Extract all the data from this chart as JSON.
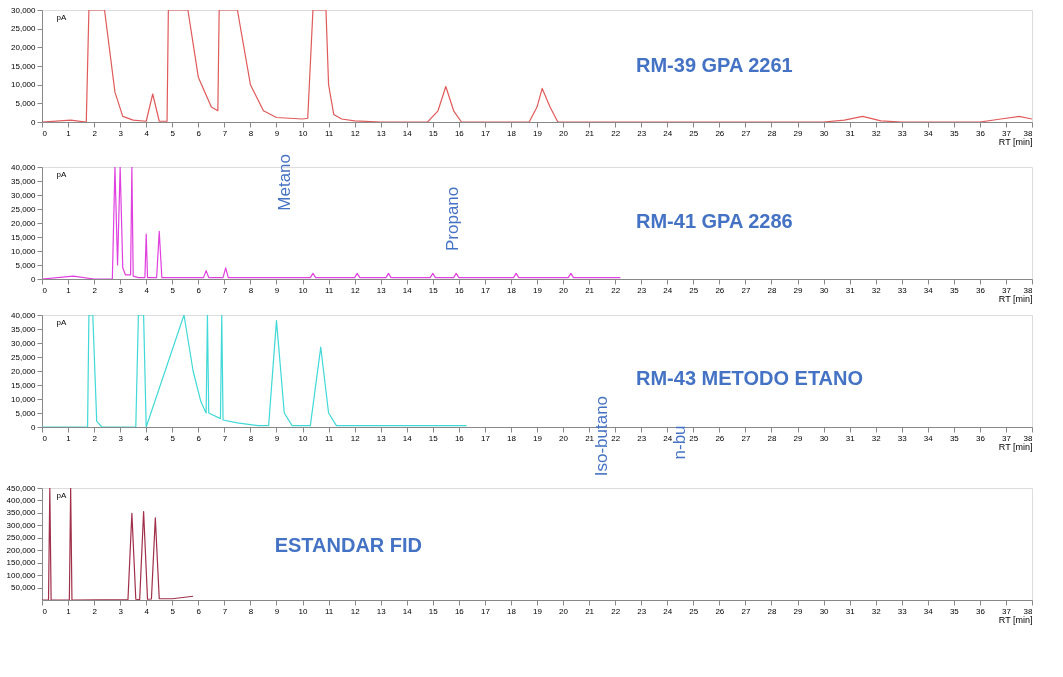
{
  "chart_data": [
    {
      "type": "line",
      "title": "RM-39 GPA 2261",
      "xlabel": "RT [min]",
      "ylabel": "pA",
      "xlim": [
        0,
        38
      ],
      "xticks": [
        0,
        1,
        2,
        3,
        4,
        5,
        6,
        7,
        8,
        9,
        10,
        11,
        12,
        13,
        14,
        15,
        16,
        17,
        18,
        19,
        20,
        21,
        22,
        23,
        24,
        25,
        26,
        27,
        28,
        29,
        30,
        31,
        32,
        33,
        34,
        35,
        36,
        37,
        38
      ],
      "ylim": [
        0,
        30000
      ],
      "yticks": [
        0,
        {
          "value": 5000,
          "label": "5,000"
        },
        {
          "value": 10000,
          "label": "10,000"
        },
        {
          "value": 15000,
          "label": "15,000"
        },
        {
          "value": 20000,
          "label": "20,000"
        },
        {
          "value": 25000,
          "label": "25,000"
        },
        {
          "value": 30000,
          "label": "30,000"
        }
      ],
      "x": [
        0,
        1.1,
        1.7,
        1.8,
        2.4,
        2.8,
        3.1,
        3.5,
        4.0,
        4.25,
        4.5,
        4.8,
        4.85,
        5.6,
        6.0,
        6.5,
        6.75,
        6.8,
        7.5,
        8.0,
        8.5,
        9.0,
        10.0,
        10.2,
        10.4,
        10.9,
        11.0,
        11.2,
        11.5,
        12.0,
        13.0,
        14.8,
        15.2,
        15.5,
        15.8,
        16.1,
        18.7,
        19.0,
        19.2,
        19.5,
        19.8,
        30.0,
        30.8,
        31.5,
        32.2,
        33.0,
        36.0,
        36.8,
        37.5,
        38.0
      ],
      "series": [
        {
          "color": "#e05a5a",
          "values": [
            0,
            500,
            0,
            30000,
            30000,
            8000,
            1500,
            500,
            200,
            7500,
            200,
            200,
            30000,
            30000,
            12000,
            4000,
            3000,
            30000,
            30000,
            10000,
            3000,
            1200,
            800,
            1000,
            30000,
            30000,
            10000,
            2000,
            800,
            300,
            0,
            0,
            3000,
            9500,
            3000,
            0,
            0,
            4000,
            9000,
            4000,
            0,
            0,
            500,
            1500,
            300,
            0,
            0,
            800,
            1500,
            800
          ]
        }
      ]
    },
    {
      "type": "line",
      "title": "RM-41 GPA 2286",
      "xlabel": "RT [min]",
      "ylabel": "pA",
      "xlim": [
        0,
        38
      ],
      "xticks": [
        0,
        1,
        2,
        3,
        4,
        5,
        6,
        7,
        8,
        9,
        10,
        11,
        12,
        13,
        14,
        15,
        16,
        17,
        18,
        19,
        20,
        21,
        22,
        23,
        24,
        25,
        26,
        27,
        28,
        29,
        30,
        31,
        32,
        33,
        34,
        35,
        36,
        37,
        38
      ],
      "ylim": [
        0,
        40000
      ],
      "yticks": [
        0,
        {
          "value": 5000,
          "label": "5,000"
        },
        {
          "value": 10000,
          "label": "10,000"
        },
        {
          "value": 15000,
          "label": "15,000"
        },
        {
          "value": 20000,
          "label": "20,000"
        },
        {
          "value": 25000,
          "label": "25,000"
        },
        {
          "value": 30000,
          "label": "30,000"
        },
        {
          "value": 35000,
          "label": "35,000"
        },
        {
          "value": 40000,
          "label": "40,000"
        }
      ],
      "x": [
        0,
        1.2,
        2.0,
        2.7,
        2.8,
        2.9,
        3.0,
        3.1,
        3.2,
        3.4,
        3.45,
        3.5,
        3.7,
        3.95,
        4.0,
        4.05,
        4.4,
        4.5,
        4.6,
        6.2,
        6.3,
        6.4,
        6.95,
        7.05,
        7.15,
        10.3,
        10.4,
        10.5,
        12.0,
        12.1,
        12.2,
        13.2,
        13.3,
        13.4,
        14.9,
        15.0,
        15.1,
        15.8,
        15.9,
        16.0,
        18.1,
        18.2,
        18.3,
        20.2,
        20.3,
        20.4,
        22.2
      ],
      "series": [
        {
          "color": "#e040e0",
          "values": [
            0,
            1000,
            0,
            0,
            40000,
            5000,
            40000,
            4000,
            1500,
            1500,
            40000,
            1000,
            500,
            500,
            16000,
            500,
            500,
            17000,
            500,
            500,
            3000,
            500,
            500,
            4000,
            500,
            500,
            2000,
            500,
            500,
            2000,
            500,
            500,
            2000,
            500,
            500,
            2000,
            500,
            500,
            2000,
            500,
            500,
            2000,
            500,
            500,
            2000,
            500,
            500
          ]
        }
      ],
      "annotations": [
        "Metano",
        "Propano"
      ]
    },
    {
      "type": "line",
      "title": "RM-43 METODO ETANO",
      "xlabel": "RT [min]",
      "ylabel": "pA",
      "xlim": [
        0,
        38
      ],
      "xticks": [
        0,
        1,
        2,
        3,
        4,
        5,
        6,
        7,
        8,
        9,
        10,
        11,
        12,
        13,
        14,
        15,
        16,
        17,
        18,
        19,
        20,
        21,
        22,
        23,
        24,
        25,
        26,
        27,
        28,
        29,
        30,
        31,
        32,
        33,
        34,
        35,
        36,
        37,
        38
      ],
      "ylim": [
        0,
        40000
      ],
      "yticks": [
        0,
        {
          "value": 5000,
          "label": "5,000"
        },
        {
          "value": 10000,
          "label": "10,000"
        },
        {
          "value": 15000,
          "label": "15,000"
        },
        {
          "value": 20000,
          "label": "20,000"
        },
        {
          "value": 25000,
          "label": "25,000"
        },
        {
          "value": 30000,
          "label": "30,000"
        },
        {
          "value": 35000,
          "label": "35,000"
        },
        {
          "value": 40000,
          "label": "40,000"
        }
      ],
      "x": [
        0,
        1.75,
        1.8,
        1.95,
        2.1,
        2.3,
        3.6,
        3.7,
        3.9,
        4.0,
        5.45,
        5.8,
        6.1,
        6.3,
        6.35,
        6.4,
        6.85,
        6.9,
        6.95,
        7.5,
        8.3,
        8.7,
        9.0,
        9.3,
        9.6,
        10.3,
        10.7,
        11.0,
        11.3,
        16.3
      ],
      "series": [
        {
          "color": "#40d8d8",
          "values": [
            0,
            0,
            40000,
            40000,
            2000,
            0,
            0,
            40000,
            40000,
            0,
            40000,
            20000,
            9000,
            5000,
            40000,
            5000,
            3000,
            40000,
            2500,
            1500,
            500,
            500,
            38000,
            5000,
            500,
            500,
            28500,
            5000,
            500,
            500
          ]
        }
      ],
      "annotations": [
        "Iso-butano",
        "n-bu"
      ]
    },
    {
      "type": "line",
      "title": "ESTANDAR FID",
      "xlabel": "RT [min]",
      "ylabel": "pA",
      "xlim": [
        0,
        38
      ],
      "xticks": [
        0,
        1,
        2,
        3,
        4,
        5,
        6,
        7,
        8,
        9,
        10,
        11,
        12,
        13,
        14,
        15,
        16,
        17,
        18,
        19,
        20,
        21,
        22,
        23,
        24,
        25,
        26,
        27,
        28,
        29,
        30,
        31,
        32,
        33,
        34,
        35,
        36,
        37,
        38
      ],
      "ylim": [
        0,
        450000
      ],
      "yticks": [
        {
          "value": 50000,
          "label": "50,000"
        },
        {
          "value": 100000,
          "label": "100,000"
        },
        {
          "value": 150000,
          "label": "150,000"
        },
        {
          "value": 200000,
          "label": "200,000"
        },
        {
          "value": 250000,
          "label": "250,000"
        },
        {
          "value": 300000,
          "label": "300,000"
        },
        {
          "value": 350000,
          "label": "350,000"
        },
        {
          "value": 400000,
          "label": "400,000"
        },
        {
          "value": 450000,
          "label": "450,000"
        }
      ],
      "x": [
        0,
        0.25,
        0.3,
        0.35,
        1.05,
        1.1,
        1.15,
        3.3,
        3.45,
        3.6,
        3.75,
        3.9,
        4.05,
        4.2,
        4.35,
        4.5,
        5.0,
        5.8
      ],
      "series": [
        {
          "color": "#a0304a",
          "values": [
            0,
            0,
            450000,
            0,
            0,
            450000,
            0,
            2000,
            348000,
            3000,
            2000,
            355000,
            3000,
            4000,
            330000,
            5000,
            5000,
            15000
          ]
        }
      ]
    }
  ]
}
